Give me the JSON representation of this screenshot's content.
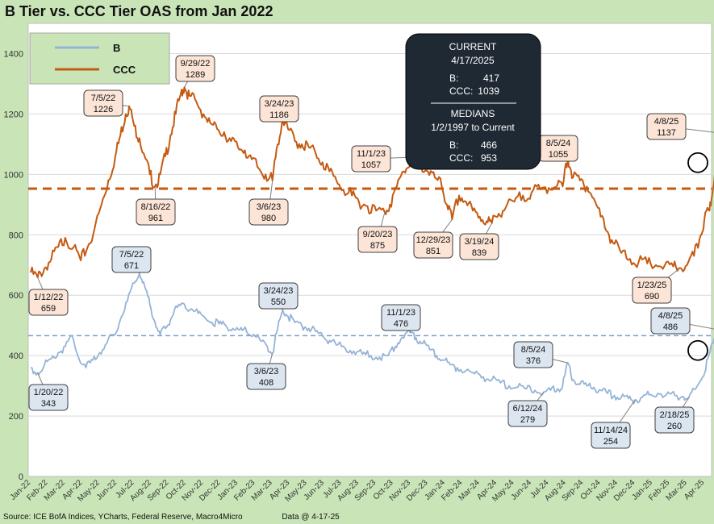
{
  "chart_data": {
    "type": "line",
    "title": "B Tier vs. CCC Tier OAS from Jan 2022",
    "ylim": [
      0,
      1500
    ],
    "yticks": [
      0,
      200,
      400,
      600,
      800,
      1000,
      1200,
      1400
    ],
    "x_tick_labels": [
      "Jan-22",
      "Feb-22",
      "Mar-22",
      "Apr-22",
      "May-22",
      "Jun-22",
      "Jul-22",
      "Aug-22",
      "Sep-22",
      "Oct-22",
      "Nov-22",
      "Dec-22",
      "Jan-23",
      "Feb-23",
      "Mar-23",
      "Apr-23",
      "May-23",
      "Jun-23",
      "Jul-23",
      "Aug-23",
      "Sep-23",
      "Oct-23",
      "Nov-23",
      "Dec-23",
      "Jan-24",
      "Feb-24",
      "Mar-24",
      "Apr-24",
      "May-24",
      "Jun-24",
      "Jul-24",
      "Aug-24",
      "Sep-24",
      "Oct-24",
      "Nov-24",
      "Dec-24",
      "Jan-25",
      "Feb-25",
      "Mar-25",
      "Apr-25"
    ],
    "legend": [
      "B",
      "CCC"
    ],
    "colors": {
      "B": "#95B3D7",
      "CCC": "#C55A11"
    },
    "medians": {
      "B": 466,
      "CCC": 953
    },
    "series": [
      {
        "name": "CCC",
        "points": [
          [
            0,
            675
          ],
          [
            0.4,
            659
          ],
          [
            0.8,
            690
          ],
          [
            1.2,
            720
          ],
          [
            1.6,
            760
          ],
          [
            2.0,
            790
          ],
          [
            2.5,
            760
          ],
          [
            2.9,
            715
          ],
          [
            3.3,
            760
          ],
          [
            3.7,
            820
          ],
          [
            4.1,
            900
          ],
          [
            4.5,
            980
          ],
          [
            4.9,
            1060
          ],
          [
            5.2,
            1130
          ],
          [
            5.5,
            1200
          ],
          [
            5.7,
            1226
          ],
          [
            6.0,
            1160
          ],
          [
            6.3,
            1120
          ],
          [
            6.6,
            1060
          ],
          [
            6.9,
            1000
          ],
          [
            7.2,
            961
          ],
          [
            7.5,
            1000
          ],
          [
            7.8,
            1060
          ],
          [
            8.1,
            1130
          ],
          [
            8.4,
            1200
          ],
          [
            8.7,
            1270
          ],
          [
            8.9,
            1289
          ],
          [
            9.2,
            1260
          ],
          [
            9.6,
            1240
          ],
          [
            10.0,
            1200
          ],
          [
            10.4,
            1170
          ],
          [
            10.8,
            1150
          ],
          [
            11.2,
            1140
          ],
          [
            11.6,
            1110
          ],
          [
            12.0,
            1090
          ],
          [
            12.4,
            1080
          ],
          [
            12.8,
            1050
          ],
          [
            13.2,
            1020
          ],
          [
            13.6,
            1000
          ],
          [
            14.0,
            980
          ],
          [
            14.3,
            1100
          ],
          [
            14.6,
            1186
          ],
          [
            14.9,
            1150
          ],
          [
            15.3,
            1110
          ],
          [
            15.7,
            1100
          ],
          [
            16.1,
            1090
          ],
          [
            16.5,
            1070
          ],
          [
            16.9,
            1040
          ],
          [
            17.3,
            1010
          ],
          [
            17.7,
            980
          ],
          [
            18.1,
            950
          ],
          [
            18.6,
            930
          ],
          [
            19.0,
            910
          ],
          [
            19.5,
            895
          ],
          [
            20.0,
            880
          ],
          [
            20.5,
            875
          ],
          [
            20.8,
            900
          ],
          [
            21.2,
            960
          ],
          [
            21.6,
            1010
          ],
          [
            22.0,
            1040
          ],
          [
            22.2,
            1057
          ],
          [
            22.6,
            1030
          ],
          [
            23.0,
            1010
          ],
          [
            23.4,
            990
          ],
          [
            23.8,
            960
          ],
          [
            24.1,
            900
          ],
          [
            24.4,
            851
          ],
          [
            24.8,
            930
          ],
          [
            25.2,
            910
          ],
          [
            25.6,
            880
          ],
          [
            26.0,
            860
          ],
          [
            26.4,
            845
          ],
          [
            26.7,
            839
          ],
          [
            27.1,
            870
          ],
          [
            27.5,
            890
          ],
          [
            28.0,
            910
          ],
          [
            28.5,
            930
          ],
          [
            29.0,
            940
          ],
          [
            29.5,
            950
          ],
          [
            30.0,
            955
          ],
          [
            30.5,
            965
          ],
          [
            30.8,
            960
          ],
          [
            31.1,
            1055
          ],
          [
            31.4,
            990
          ],
          [
            31.8,
            980
          ],
          [
            32.2,
            960
          ],
          [
            32.6,
            920
          ],
          [
            33.0,
            860
          ],
          [
            33.4,
            810
          ],
          [
            33.8,
            770
          ],
          [
            34.2,
            740
          ],
          [
            34.7,
            720
          ],
          [
            35.2,
            710
          ],
          [
            35.7,
            705
          ],
          [
            36.2,
            700
          ],
          [
            36.7,
            698
          ],
          [
            37.2,
            695
          ],
          [
            37.6,
            690
          ],
          [
            38.0,
            700
          ],
          [
            38.4,
            730
          ],
          [
            38.8,
            800
          ],
          [
            39.0,
            850
          ],
          [
            39.3,
            880
          ],
          [
            39.5,
            950
          ],
          [
            39.7,
            1080
          ],
          [
            39.9,
            1137
          ],
          [
            40.1,
            1080
          ],
          [
            40.3,
            1039
          ]
        ]
      },
      {
        "name": "B",
        "points": [
          [
            0,
            360
          ],
          [
            0.4,
            343
          ],
          [
            0.8,
            370
          ],
          [
            1.2,
            390
          ],
          [
            1.6,
            410
          ],
          [
            2.0,
            430
          ],
          [
            2.4,
            465
          ],
          [
            2.8,
            390
          ],
          [
            3.2,
            360
          ],
          [
            3.6,
            385
          ],
          [
            4.0,
            410
          ],
          [
            4.4,
            440
          ],
          [
            4.8,
            470
          ],
          [
            5.2,
            520
          ],
          [
            5.6,
            580
          ],
          [
            6.0,
            640
          ],
          [
            6.3,
            671
          ],
          [
            6.6,
            630
          ],
          [
            6.9,
            570
          ],
          [
            7.2,
            510
          ],
          [
            7.5,
            470
          ],
          [
            7.8,
            490
          ],
          [
            8.1,
            520
          ],
          [
            8.5,
            560
          ],
          [
            8.9,
            570
          ],
          [
            9.3,
            555
          ],
          [
            9.7,
            540
          ],
          [
            10.1,
            525
          ],
          [
            10.5,
            510
          ],
          [
            10.9,
            505
          ],
          [
            11.3,
            500
          ],
          [
            11.7,
            490
          ],
          [
            12.1,
            485
          ],
          [
            12.5,
            480
          ],
          [
            12.9,
            470
          ],
          [
            13.3,
            450
          ],
          [
            13.7,
            430
          ],
          [
            14.0,
            408
          ],
          [
            14.3,
            490
          ],
          [
            14.6,
            550
          ],
          [
            14.9,
            530
          ],
          [
            15.3,
            510
          ],
          [
            15.7,
            500
          ],
          [
            16.1,
            490
          ],
          [
            16.5,
            480
          ],
          [
            16.9,
            465
          ],
          [
            17.3,
            450
          ],
          [
            17.7,
            435
          ],
          [
            18.2,
            425
          ],
          [
            18.7,
            415
          ],
          [
            19.2,
            405
          ],
          [
            19.7,
            400
          ],
          [
            20.2,
            395
          ],
          [
            20.7,
            400
          ],
          [
            21.1,
            430
          ],
          [
            21.5,
            460
          ],
          [
            22.0,
            476
          ],
          [
            22.3,
            460
          ],
          [
            22.7,
            440
          ],
          [
            23.1,
            420
          ],
          [
            23.5,
            400
          ],
          [
            23.9,
            385
          ],
          [
            24.3,
            370
          ],
          [
            24.7,
            360
          ],
          [
            25.2,
            350
          ],
          [
            25.7,
            340
          ],
          [
            26.2,
            330
          ],
          [
            26.7,
            320
          ],
          [
            27.2,
            310
          ],
          [
            27.7,
            300
          ],
          [
            28.2,
            295
          ],
          [
            28.7,
            290
          ],
          [
            29.2,
            285
          ],
          [
            29.7,
            279
          ],
          [
            30.1,
            285
          ],
          [
            30.5,
            290
          ],
          [
            30.8,
            300
          ],
          [
            31.1,
            376
          ],
          [
            31.4,
            320
          ],
          [
            31.8,
            305
          ],
          [
            32.2,
            300
          ],
          [
            32.6,
            295
          ],
          [
            33.0,
            285
          ],
          [
            33.4,
            275
          ],
          [
            33.8,
            268
          ],
          [
            34.2,
            262
          ],
          [
            34.6,
            258
          ],
          [
            35.0,
            254
          ],
          [
            35.4,
            262
          ],
          [
            35.8,
            270
          ],
          [
            36.3,
            275
          ],
          [
            36.8,
            270
          ],
          [
            37.3,
            268
          ],
          [
            37.8,
            264
          ],
          [
            38.1,
            260
          ],
          [
            38.5,
            290
          ],
          [
            38.9,
            330
          ],
          [
            39.2,
            390
          ],
          [
            39.5,
            440
          ],
          [
            39.8,
            486
          ],
          [
            40.1,
            450
          ],
          [
            40.3,
            417
          ]
        ]
      }
    ],
    "annotations": [
      {
        "series": "CCC",
        "x": 0.4,
        "y": 659,
        "date": "1/12/22",
        "value": "659"
      },
      {
        "series": "CCC",
        "x": 5.7,
        "y": 1226,
        "date": "7/5/22",
        "value": "1226"
      },
      {
        "series": "CCC",
        "x": 7.2,
        "y": 961,
        "date": "8/16/22",
        "value": "961"
      },
      {
        "series": "CCC",
        "x": 8.9,
        "y": 1289,
        "date": "9/29/22",
        "value": "1289"
      },
      {
        "series": "CCC",
        "x": 14.0,
        "y": 980,
        "date": "3/6/23",
        "value": "980"
      },
      {
        "series": "CCC",
        "x": 14.6,
        "y": 1186,
        "date": "3/24/23",
        "value": "1186"
      },
      {
        "series": "CCC",
        "x": 20.5,
        "y": 875,
        "date": "9/20/23",
        "value": "875"
      },
      {
        "series": "CCC",
        "x": 22.2,
        "y": 1057,
        "date": "11/1/23",
        "value": "1057"
      },
      {
        "series": "CCC",
        "x": 24.4,
        "y": 851,
        "date": "12/29/23",
        "value": "851"
      },
      {
        "series": "CCC",
        "x": 26.7,
        "y": 839,
        "date": "3/19/24",
        "value": "839"
      },
      {
        "series": "CCC",
        "x": 31.1,
        "y": 1055,
        "date": "8/5/24",
        "value": "1055"
      },
      {
        "series": "CCC",
        "x": 37.6,
        "y": 690,
        "date": "1/23/25",
        "value": "690"
      },
      {
        "series": "CCC",
        "x": 39.9,
        "y": 1137,
        "date": "4/8/25",
        "value": "1137"
      },
      {
        "series": "B",
        "x": 0.4,
        "y": 343,
        "date": "1/20/22",
        "value": "343"
      },
      {
        "series": "B",
        "x": 6.3,
        "y": 671,
        "date": "7/5/22",
        "value": "671"
      },
      {
        "series": "B",
        "x": 14.0,
        "y": 408,
        "date": "3/6/23",
        "value": "408"
      },
      {
        "series": "B",
        "x": 14.6,
        "y": 550,
        "date": "3/24/23",
        "value": "550"
      },
      {
        "series": "B",
        "x": 22.0,
        "y": 476,
        "date": "11/1/23",
        "value": "476"
      },
      {
        "series": "B",
        "x": 29.7,
        "y": 279,
        "date": "6/12/24",
        "value": "279"
      },
      {
        "series": "B",
        "x": 31.1,
        "y": 376,
        "date": "8/5/24",
        "value": "376"
      },
      {
        "series": "B",
        "x": 35.0,
        "y": 254,
        "date": "11/14/24",
        "value": "254"
      },
      {
        "series": "B",
        "x": 38.1,
        "y": 260,
        "date": "2/18/25",
        "value": "260"
      },
      {
        "series": "B",
        "x": 39.8,
        "y": 486,
        "date": "4/8/25",
        "value": "486"
      }
    ],
    "info_box": {
      "current_header": "CURRENT",
      "current_date": "4/17/2025",
      "b_label": "B:",
      "b_current": "417",
      "ccc_label": "CCC:",
      "ccc_current": "1039",
      "medians_header": "MEDIANS",
      "medians_range": "1/2/1997 to Current",
      "b_median": "466",
      "ccc_median": "953"
    }
  },
  "footer": {
    "source": "Source: ICE BofA Indices, YCharts, Federal Reserve, Macro4Micro",
    "as_of": "Data @ 4-17-25"
  }
}
